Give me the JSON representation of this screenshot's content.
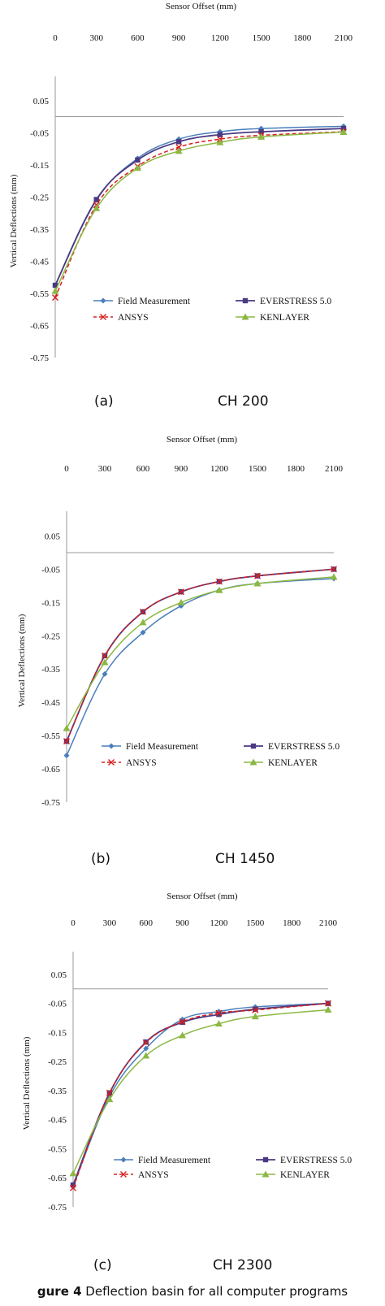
{
  "figure": {
    "label": "gure 4",
    "text": " Deflection basin for all computer programs"
  },
  "colors": {
    "field": "#4a7ebb",
    "everstress": "#4b3a82",
    "ansys": "#d62020",
    "kenlayer": "#8bb843"
  },
  "chart_data": [
    {
      "type": "line",
      "subfigure": "(a)",
      "section": "CH 200",
      "xlabel": "Sensor Offset (mm)",
      "ylabel": "Vertical Deflections (mm)",
      "x_ticks": [
        "0",
        "300",
        "600",
        "900",
        "1200",
        "1500",
        "1800",
        "2100"
      ],
      "y_ticks": [
        "0.05",
        "-0.05",
        "-0.15",
        "-0.25",
        "-0.35",
        "-0.45",
        "-0.55",
        "-0.65",
        "-0.75"
      ],
      "y_tick_values": [
        0.05,
        -0.05,
        -0.15,
        -0.25,
        -0.35,
        -0.45,
        -0.55,
        -0.65,
        -0.75
      ],
      "xlim": [
        0,
        2100
      ],
      "ylim": [
        -0.75,
        0.1
      ],
      "x_axis_position": "top",
      "grid": false,
      "legend": "bottom",
      "series": [
        {
          "name": "Field Measurement",
          "marker": "diamond",
          "dash": "solid",
          "x": [
            0,
            300,
            600,
            900,
            1200,
            1500,
            2100
          ],
          "y": [
            -0.525,
            -0.26,
            -0.13,
            -0.07,
            -0.047,
            -0.037,
            -0.03
          ]
        },
        {
          "name": "EVERSTRESS 5.0",
          "marker": "square",
          "dash": "solid",
          "x": [
            0,
            300,
            600,
            900,
            1200,
            1500,
            2100
          ],
          "y": [
            -0.525,
            -0.258,
            -0.135,
            -0.078,
            -0.056,
            -0.047,
            -0.037
          ]
        },
        {
          "name": "ANSYS",
          "marker": "x",
          "dash": "dashed",
          "x": [
            0,
            300,
            600,
            900,
            1200,
            1500,
            2100
          ],
          "y": [
            -0.563,
            -0.275,
            -0.155,
            -0.095,
            -0.07,
            -0.058,
            -0.047
          ]
        },
        {
          "name": "KENLAYER",
          "marker": "triangle",
          "dash": "solid",
          "x": [
            0,
            300,
            600,
            900,
            1200,
            1500,
            2100
          ],
          "y": [
            -0.543,
            -0.285,
            -0.16,
            -0.107,
            -0.08,
            -0.063,
            -0.048
          ]
        }
      ]
    },
    {
      "type": "line",
      "subfigure": "(b)",
      "section": "CH 1450",
      "xlabel": "Sensor Offset (mm)",
      "ylabel": "Vertical Deflections (mm)",
      "x_ticks": [
        "0",
        "300",
        "600",
        "900",
        "1200",
        "1500",
        "1800",
        "2100"
      ],
      "y_ticks": [
        "0.05",
        "-0.05",
        "-0.15",
        "-0.25",
        "-0.35",
        "-0.45",
        "-0.55",
        "-0.65",
        "-0.75"
      ],
      "y_tick_values": [
        0.05,
        -0.05,
        -0.15,
        -0.25,
        -0.35,
        -0.45,
        -0.55,
        -0.65,
        -0.75
      ],
      "xlim": [
        0,
        2100
      ],
      "ylim": [
        -0.75,
        0.1
      ],
      "x_axis_position": "top",
      "grid": false,
      "legend": "bottom",
      "series": [
        {
          "name": "Field Measurement",
          "marker": "diamond",
          "dash": "solid",
          "x": [
            0,
            300,
            600,
            900,
            1200,
            1500,
            2100
          ],
          "y": [
            -0.61,
            -0.365,
            -0.24,
            -0.16,
            -0.113,
            -0.093,
            -0.078
          ]
        },
        {
          "name": "EVERSTRESS 5.0",
          "marker": "square",
          "dash": "solid",
          "x": [
            0,
            300,
            600,
            900,
            1200,
            1500,
            2100
          ],
          "y": [
            -0.567,
            -0.31,
            -0.178,
            -0.118,
            -0.087,
            -0.07,
            -0.05
          ]
        },
        {
          "name": "ANSYS",
          "marker": "x",
          "dash": "dashed",
          "x": [
            0,
            300,
            600,
            900,
            1200,
            1500,
            2100
          ],
          "y": [
            -0.567,
            -0.31,
            -0.178,
            -0.118,
            -0.087,
            -0.07,
            -0.05
          ]
        },
        {
          "name": "KENLAYER",
          "marker": "triangle",
          "dash": "solid",
          "x": [
            0,
            300,
            600,
            900,
            1200,
            1500,
            2100
          ],
          "y": [
            -0.528,
            -0.33,
            -0.21,
            -0.15,
            -0.113,
            -0.093,
            -0.073
          ]
        }
      ]
    },
    {
      "type": "line",
      "subfigure": "(c)",
      "section": "CH 2300",
      "xlabel": "Sensor Offset (mm)",
      "ylabel": "Vertical Deflections (mm)",
      "x_ticks": [
        "0",
        "300",
        "600",
        "900",
        "1200",
        "1500",
        "1800",
        "2100"
      ],
      "y_ticks": [
        "0.05",
        "-0.05",
        "-0.15",
        "-0.25",
        "-0.35",
        "-0.45",
        "-0.55",
        "-0.65",
        "-0.75"
      ],
      "y_tick_values": [
        0.05,
        -0.05,
        -0.15,
        -0.25,
        -0.35,
        -0.45,
        -0.55,
        -0.65,
        -0.75
      ],
      "xlim": [
        0,
        2100
      ],
      "ylim": [
        -0.75,
        0.1
      ],
      "x_axis_position": "top",
      "grid": false,
      "legend": "bottom",
      "series": [
        {
          "name": "Field Measurement",
          "marker": "diamond",
          "dash": "solid",
          "x": [
            0,
            300,
            600,
            900,
            1200,
            1500,
            2100
          ],
          "y": [
            -0.68,
            -0.37,
            -0.205,
            -0.105,
            -0.078,
            -0.062,
            -0.05
          ]
        },
        {
          "name": "EVERSTRESS 5.0",
          "marker": "square",
          "dash": "solid",
          "x": [
            0,
            300,
            600,
            900,
            1200,
            1500,
            2100
          ],
          "y": [
            -0.675,
            -0.358,
            -0.183,
            -0.115,
            -0.088,
            -0.07,
            -0.05
          ]
        },
        {
          "name": "ANSYS",
          "marker": "x",
          "dash": "dashed",
          "x": [
            0,
            300,
            600,
            900,
            1200,
            1500,
            2100
          ],
          "y": [
            -0.685,
            -0.358,
            -0.185,
            -0.113,
            -0.083,
            -0.073,
            -0.05
          ]
        },
        {
          "name": "KENLAYER",
          "marker": "triangle",
          "dash": "solid",
          "x": [
            0,
            300,
            600,
            900,
            1200,
            1500,
            2100
          ],
          "y": [
            -0.635,
            -0.38,
            -0.23,
            -0.16,
            -0.12,
            -0.095,
            -0.072
          ]
        }
      ]
    }
  ]
}
